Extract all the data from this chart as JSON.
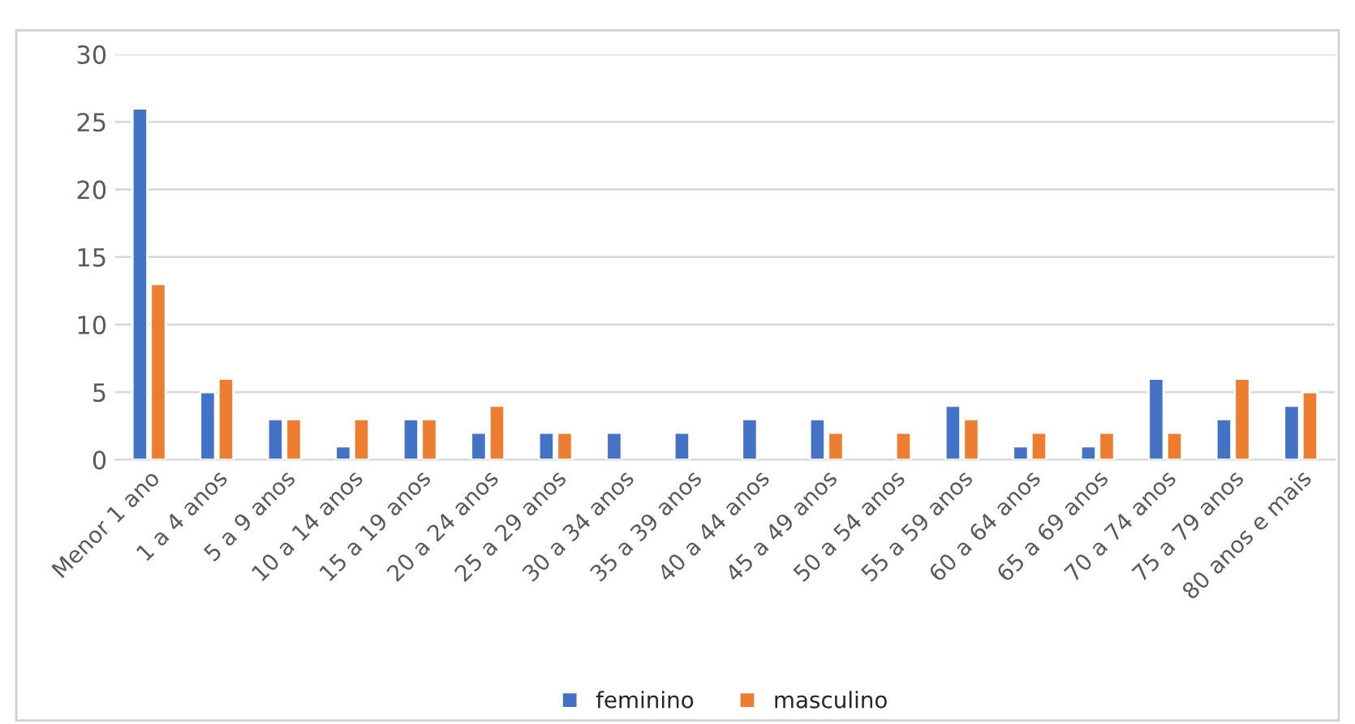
{
  "chart_data": {
    "type": "bar",
    "categories": [
      "Menor 1 ano",
      "1 a 4 anos",
      "5 a 9 anos",
      "10 a 14 anos",
      "15 a 19 anos",
      "20 a 24 anos",
      "25 a 29 anos",
      "30 a 34 anos",
      "35 a 39 anos",
      "40 a 44 anos",
      "45 a 49 anos",
      "50 a 54 anos",
      "55 a 59 anos",
      "60 a 64 anos",
      "65 a 69 anos",
      "70 a 74 anos",
      "75 a 79 anos",
      "80 anos e mais"
    ],
    "series": [
      {
        "name": "feminino",
        "color": "#4472c4",
        "values": [
          26,
          5,
          3,
          1,
          3,
          2,
          2,
          2,
          2,
          3,
          3,
          null,
          4,
          1,
          1,
          6,
          3,
          4
        ]
      },
      {
        "name": "masculino",
        "color": "#ed7d31",
        "values": [
          13,
          6,
          3,
          3,
          3,
          4,
          2,
          null,
          null,
          null,
          2,
          2,
          3,
          2,
          2,
          2,
          6,
          5
        ]
      }
    ],
    "ylim": [
      0,
      30
    ],
    "yticks": [
      0,
      5,
      10,
      15,
      20,
      25,
      30
    ],
    "grid": "y",
    "legend": "bottom"
  }
}
